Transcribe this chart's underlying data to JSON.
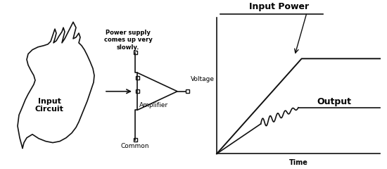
{
  "bg_color": "#ffffff",
  "input_circuit_label": "Input\nCircuit",
  "power_supply_label": "Power supply\ncomes up very\nslowly.",
  "amplifier_label": "Amplifier",
  "common_label": "Common",
  "input_power_label": "Input Power",
  "output_label": "Output",
  "voltage_label": "Voltage",
  "time_label": "Time",
  "line_color": "#111111",
  "text_color": "#000000"
}
